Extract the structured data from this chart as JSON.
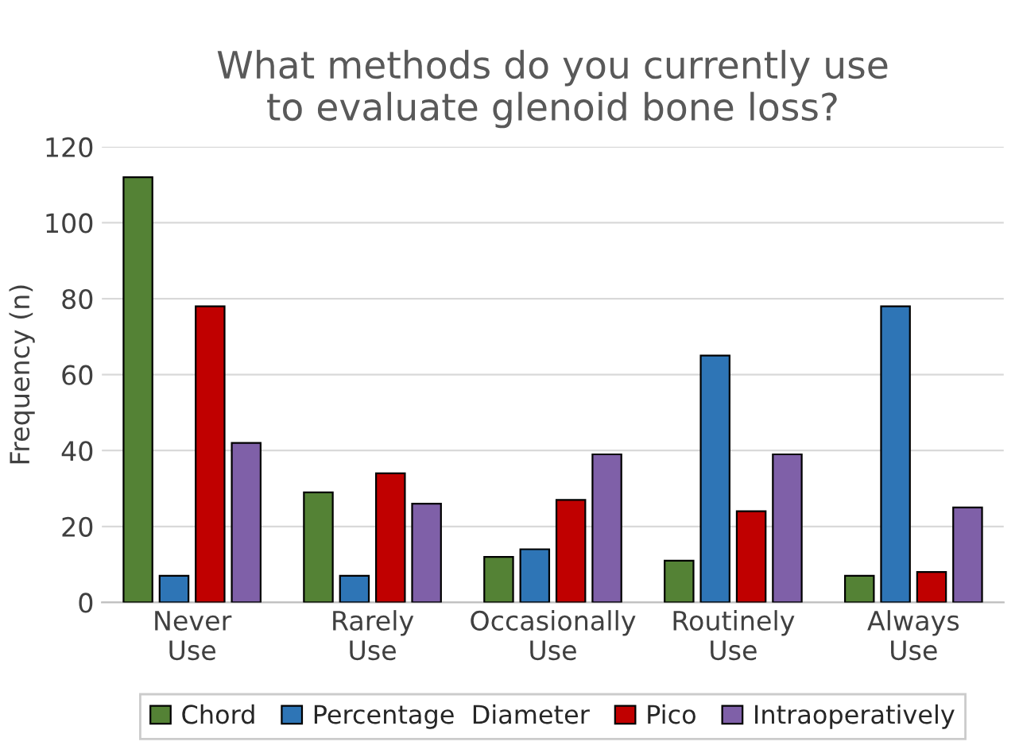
{
  "chart_data": {
    "type": "bar",
    "title": "What methods do you currently use\nto evaluate glenoid bone loss?",
    "ylabel": "Frequency (n)",
    "categories": [
      "Never\nUse",
      "Rarely\nUse",
      "Occasionally\nUse",
      "Routinely\nUse",
      "Always\nUse"
    ],
    "series": [
      {
        "name": "Chord",
        "color": "#548235",
        "values": [
          112,
          29,
          12,
          11,
          7
        ]
      },
      {
        "name": "Percentage  Diameter",
        "color": "#2e75b6",
        "values": [
          7,
          7,
          14,
          65,
          78
        ]
      },
      {
        "name": "Pico",
        "color": "#c00000",
        "values": [
          78,
          34,
          27,
          24,
          8
        ]
      },
      {
        "name": "Intraoperatively",
        "color": "#7f60a8",
        "values": [
          42,
          26,
          39,
          39,
          25
        ]
      }
    ],
    "ylim": [
      0,
      120
    ],
    "yticks": [
      0,
      20,
      40,
      60,
      80,
      100,
      120
    ],
    "grid": "y",
    "legend": "bottom"
  }
}
